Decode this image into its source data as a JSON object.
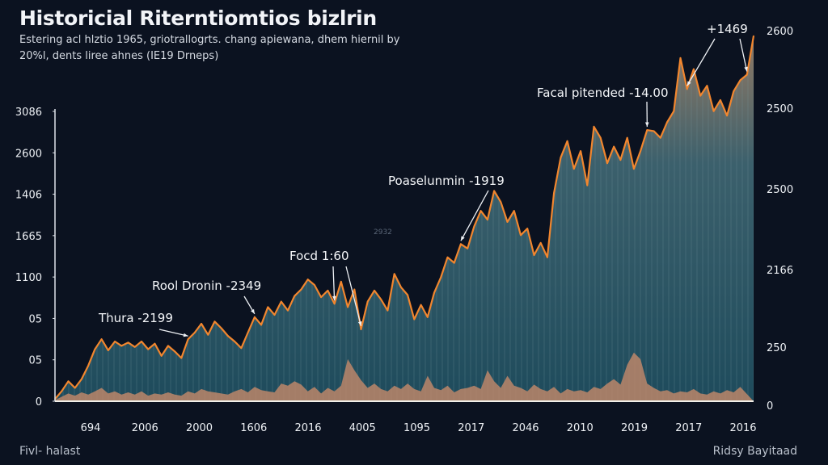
{
  "chart_data": {
    "type": "area",
    "title": "Historicial Riterntiomtios bizlrin",
    "subtitle_lines": [
      "Estering acl hlztio 1965, griotrallogrts. chang apiewana, dhem hiernil by",
      "20%l, dents liree ahnes (IE19 Drneps)"
    ],
    "xlabel": "",
    "ylabel": "",
    "x_tick_labels": [
      "694",
      "2006",
      "2000",
      "1606",
      "2016",
      "4005",
      "1095",
      "2017",
      "2046",
      "2010",
      "2019",
      "2017",
      "2016"
    ],
    "y_left_tick_labels": [
      "0",
      "05",
      "05",
      "1100",
      "1665",
      "1406",
      "2600",
      "3086"
    ],
    "y_right_tick_labels": [
      "0",
      "250",
      "2166",
      "2500",
      "2500",
      "2600"
    ],
    "ylim": [
      0,
      3086
    ],
    "grid": false,
    "legend": "none",
    "series": [
      {
        "name": "main",
        "color": "#f2862e",
        "fill_top": "#8a7a6a",
        "fill_bottom": "#1d4a5a",
        "values": [
          20,
          90,
          180,
          120,
          200,
          320,
          470,
          560,
          460,
          540,
          500,
          530,
          490,
          540,
          470,
          520,
          410,
          500,
          450,
          390,
          560,
          620,
          700,
          600,
          720,
          660,
          590,
          540,
          480,
          620,
          760,
          690,
          850,
          780,
          900,
          820,
          950,
          1010,
          1100,
          1050,
          940,
          1000,
          880,
          1080,
          850,
          1010,
          650,
          900,
          1000,
          920,
          820,
          1150,
          1030,
          960,
          740,
          870,
          760,
          980,
          1120,
          1300,
          1250,
          1420,
          1380,
          1580,
          1720,
          1640,
          1900,
          1800,
          1620,
          1720,
          1500,
          1560,
          1320,
          1430,
          1300,
          1880,
          2200,
          2350,
          2100,
          2260,
          1950,
          2480,
          2380,
          2150,
          2300,
          2180,
          2380,
          2100,
          2260,
          2450,
          2440,
          2380,
          2520,
          2620,
          3100,
          2820,
          3000,
          2760,
          2850,
          2620,
          2720,
          2580,
          2800,
          2900,
          2950,
          3300
        ]
      },
      {
        "name": "secondary",
        "color": "#c58a6a",
        "values": [
          10,
          40,
          70,
          50,
          80,
          60,
          90,
          120,
          70,
          90,
          60,
          80,
          60,
          90,
          50,
          70,
          60,
          80,
          60,
          50,
          90,
          70,
          110,
          90,
          80,
          70,
          60,
          90,
          110,
          80,
          130,
          100,
          90,
          80,
          160,
          140,
          180,
          150,
          90,
          130,
          70,
          120,
          90,
          140,
          380,
          280,
          190,
          120,
          160,
          110,
          90,
          140,
          110,
          160,
          110,
          90,
          230,
          120,
          100,
          140,
          80,
          110,
          120,
          140,
          110,
          280,
          180,
          120,
          230,
          140,
          120,
          90,
          150,
          110,
          90,
          130,
          70,
          110,
          90,
          100,
          80,
          130,
          110,
          160,
          200,
          150,
          330,
          440,
          380,
          160,
          120,
          90,
          100,
          70,
          90,
          80,
          110,
          70,
          60,
          90,
          70,
          100,
          80,
          130
        ]
      }
    ],
    "annotations": [
      {
        "text": "Thura -2199",
        "target_index": 20
      },
      {
        "text": "Rool Dronin -2349",
        "target_index": 30
      },
      {
        "text": "Focd 1:60",
        "target_index": 42,
        "second_target_index": 46
      },
      {
        "text": "Poaselunmin -1919",
        "target_index": 61
      },
      {
        "text": "Facal pitended -14.00",
        "target_index": 89
      },
      {
        "text": "+1469",
        "target_index": 95,
        "second_target_index": 104
      }
    ],
    "faint_label": "2932"
  },
  "footer": {
    "left": "Fivl- halast",
    "right": "Ridsy Bayitaad"
  }
}
